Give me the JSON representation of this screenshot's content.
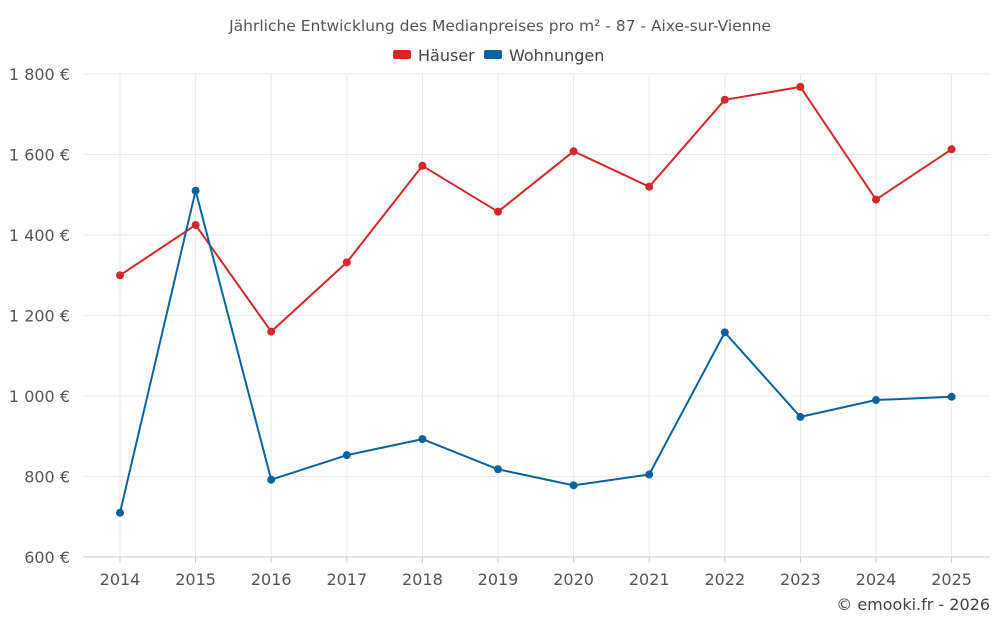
{
  "chart_data": {
    "type": "line",
    "title": "Jährliche Entwicklung des Medianpreises pro m² - 87 - Aixe-sur-Vienne",
    "categories": [
      "2014",
      "2015",
      "2016",
      "2017",
      "2018",
      "2019",
      "2020",
      "2021",
      "2022",
      "2023",
      "2024",
      "2025"
    ],
    "series": [
      {
        "name": "Häuser",
        "color": "#d62728",
        "values": [
          1300,
          1425,
          1160,
          1332,
          1572,
          1458,
          1608,
          1520,
          1736,
          1768,
          1488,
          1613
        ]
      },
      {
        "name": "Wohnungen",
        "color": "#0b639e",
        "values": [
          710,
          1510,
          792,
          853,
          893,
          818,
          778,
          805,
          1158,
          948,
          990,
          998
        ]
      }
    ],
    "ylim": [
      600,
      1800
    ],
    "yticks": [
      600,
      800,
      1000,
      1200,
      1400,
      1600,
      1800
    ],
    "ytick_labels": [
      "600 €",
      "800 €",
      "1 000 €",
      "1 200 €",
      "1 400 €",
      "1 600 €",
      "1 800 €"
    ],
    "grid": true,
    "legend": "top-center"
  },
  "credit": "© emooki.fr - 2026"
}
